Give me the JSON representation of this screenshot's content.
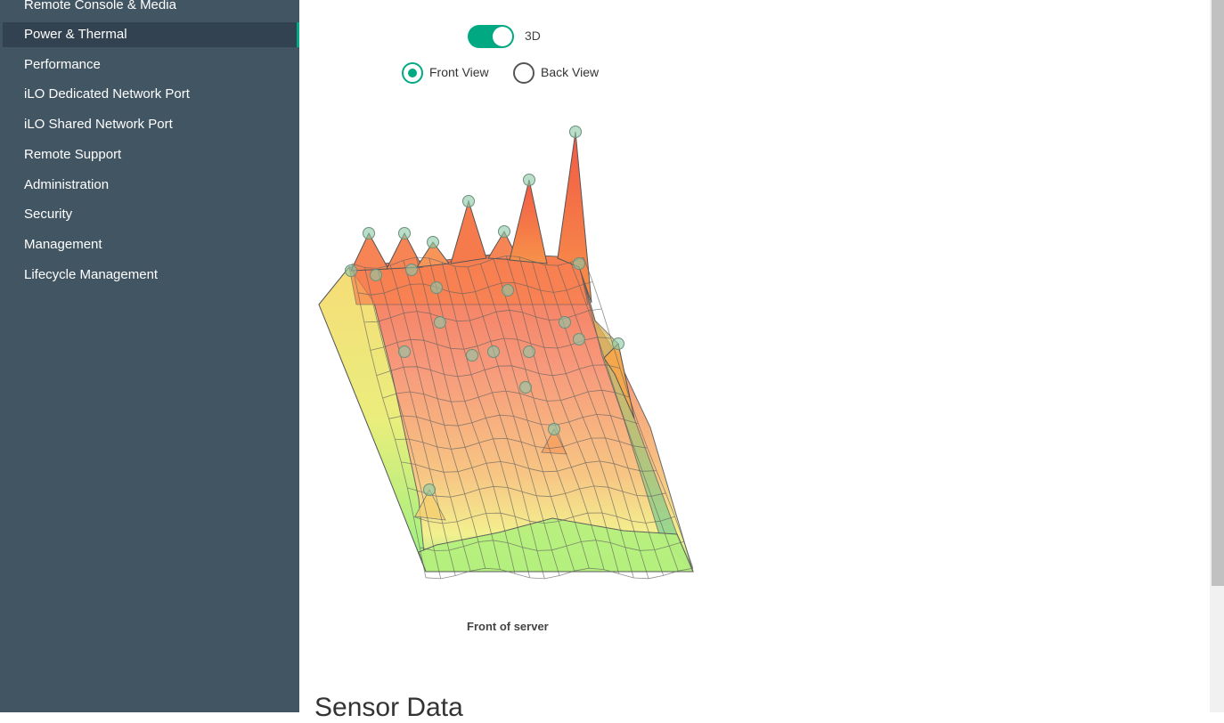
{
  "sidebar": {
    "items": [
      {
        "label": "Remote Console & Media",
        "active": false
      },
      {
        "label": "Power & Thermal",
        "active": true
      },
      {
        "label": "Performance",
        "active": false
      },
      {
        "label": "iLO Dedicated Network Port",
        "active": false
      },
      {
        "label": "iLO Shared Network Port",
        "active": false
      },
      {
        "label": "Remote Support",
        "active": false
      },
      {
        "label": "Administration",
        "active": false
      },
      {
        "label": "Security",
        "active": false
      },
      {
        "label": "Management",
        "active": false
      },
      {
        "label": "Lifecycle Management",
        "active": false
      }
    ]
  },
  "controls": {
    "toggle_label": "3D",
    "toggle_on": true,
    "radio_front_label": "Front View",
    "radio_back_label": "Back View",
    "selected_view": "front"
  },
  "chart": {
    "caption": "Front of server"
  },
  "section": {
    "title": "Sensor Data"
  },
  "colors": {
    "accent": "#01a982",
    "sidebar_bg": "#425563",
    "sidebar_active_bg": "#334250"
  }
}
